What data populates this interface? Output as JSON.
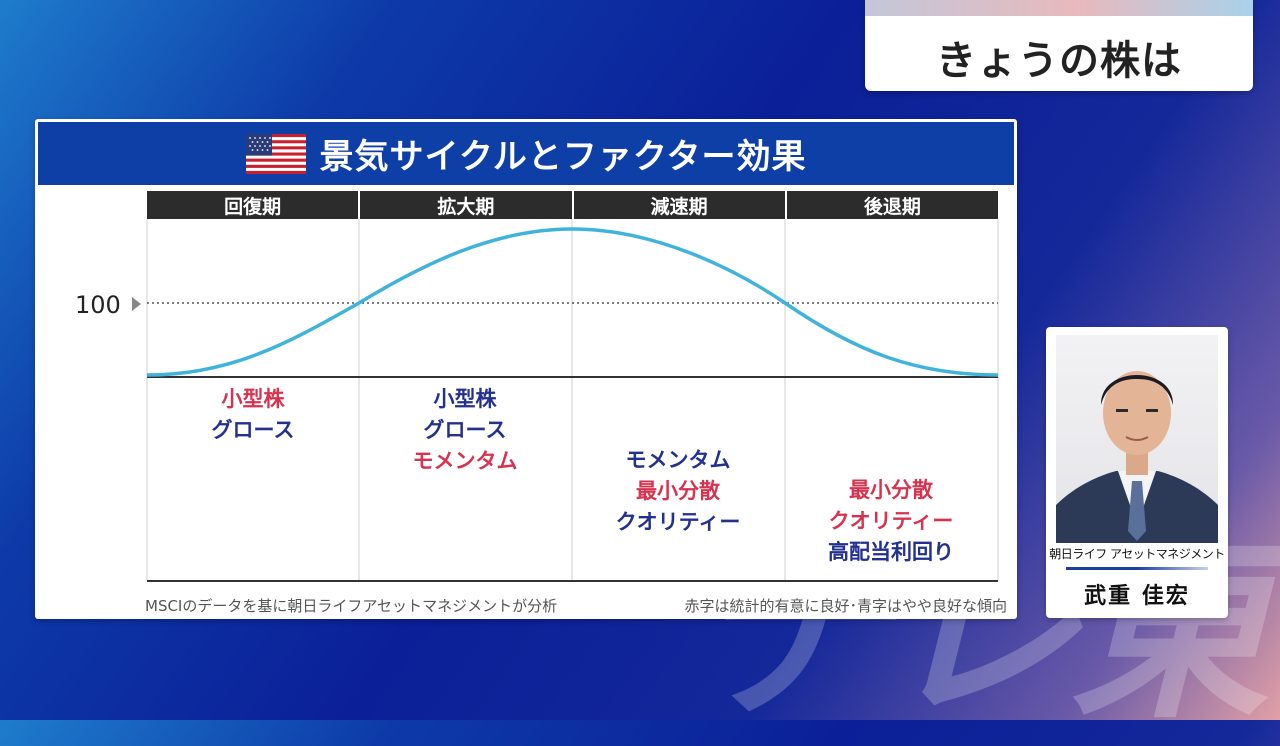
{
  "program": {
    "title": "きょうの株は"
  },
  "watermark": "テレ東",
  "panel": {
    "title": "景気サイクルとファクター効果",
    "flag_icon": "us-flag-icon",
    "phases": [
      "回復期",
      "拡大期",
      "減速期",
      "後退期"
    ],
    "reference_label": "100",
    "factors": [
      {
        "items": [
          {
            "text": "小型株",
            "color": "red"
          },
          {
            "text": "グロース",
            "color": "blue"
          }
        ]
      },
      {
        "items": [
          {
            "text": "小型株",
            "color": "blue"
          },
          {
            "text": "グロース",
            "color": "blue"
          },
          {
            "text": "モメンタム",
            "color": "red"
          }
        ]
      },
      {
        "items": [
          {
            "text": "モメンタム",
            "color": "blue"
          },
          {
            "text": "最小分散",
            "color": "red"
          },
          {
            "text": "クオリティー",
            "color": "blue"
          }
        ]
      },
      {
        "items": [
          {
            "text": "最小分散",
            "color": "red"
          },
          {
            "text": "クオリティー",
            "color": "red"
          },
          {
            "text": "高配当利回り",
            "color": "blue"
          }
        ]
      }
    ],
    "source_note": "MSCIのデータを基に朝日ライフアセットマネジメントが分析",
    "legend_note": "赤字は統計的有意に良好･青字はやや良好な傾向"
  },
  "person": {
    "company": "朝日ライフ アセットマネジメント",
    "name": "武重 佳宏"
  },
  "colors": {
    "header_blue": "#0d3fa6",
    "curve": "#3fb3dc",
    "factor_red": "#d6334f",
    "factor_blue": "#22318f"
  }
}
